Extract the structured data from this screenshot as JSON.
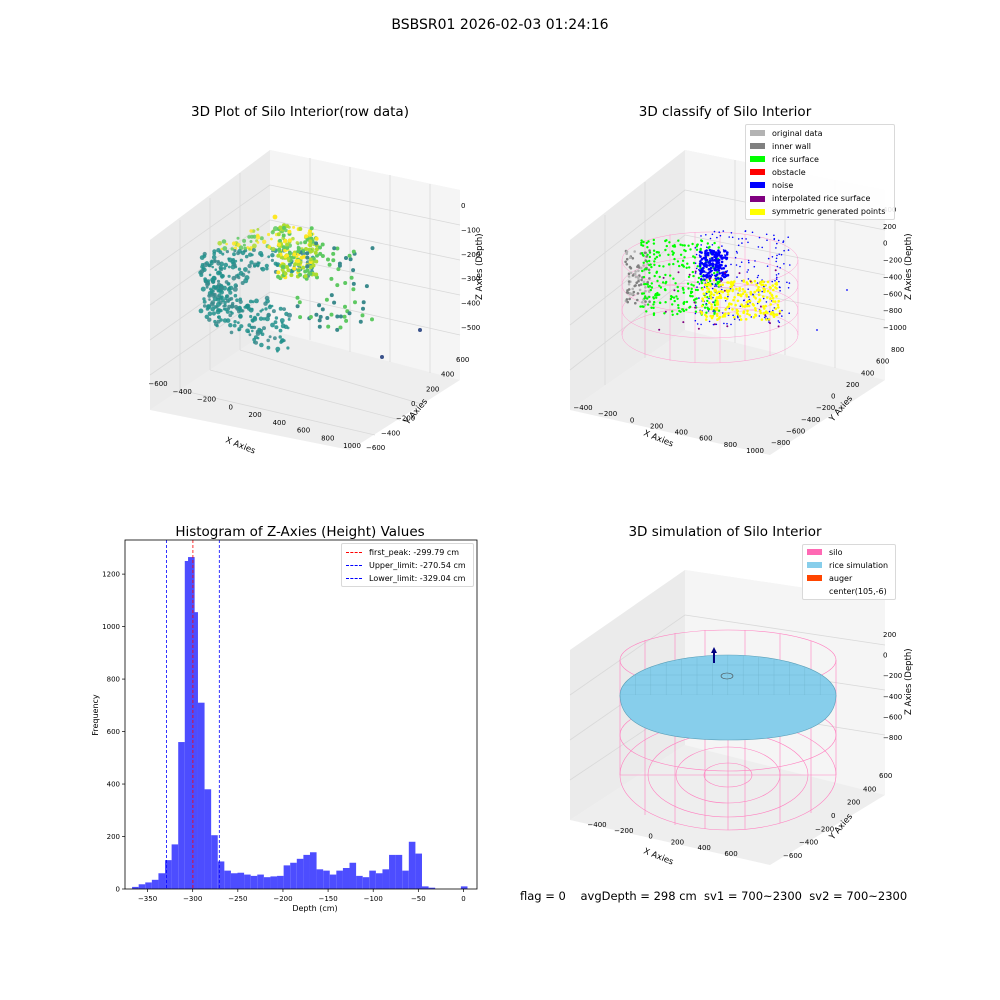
{
  "suptitle": "BSBSR01 2026-02-03 01:24:16",
  "panel1": {
    "title": "3D Plot of Silo Interior(row data)",
    "xlabel": "X Axies",
    "ylabel": "Y Axies",
    "zlabel": "Z Axies (Depth)",
    "xticks": [
      "−600",
      "−400",
      "−200",
      "0",
      "200",
      "400",
      "600",
      "800",
      "1000"
    ],
    "yticks": [
      "−600",
      "−400",
      "−200",
      "0",
      "200",
      "400",
      "600"
    ],
    "zticks": [
      "−500",
      "−400",
      "−300",
      "−200",
      "−100",
      "0"
    ]
  },
  "panel2": {
    "title": "3D classify of Silo Interior",
    "xlabel": "X Axies",
    "ylabel": "Y Axies",
    "zlabel": "Z Axies (Depth)",
    "xticks": [
      "−400",
      "−200",
      "0",
      "200",
      "400",
      "600",
      "800",
      "1000"
    ],
    "yticks": [
      "−800",
      "−600",
      "−400",
      "−200",
      "0",
      "200",
      "400",
      "600",
      "800"
    ],
    "zticks": [
      "−1000",
      "−800",
      "−600",
      "−400",
      "−200",
      "0",
      "200",
      "400"
    ],
    "legend": [
      {
        "label": "original data",
        "color": "#b3b3b3"
      },
      {
        "label": "inner wall",
        "color": "#808080"
      },
      {
        "label": "rice surface",
        "color": "#00ff00"
      },
      {
        "label": "obstacle",
        "color": "#ff0000"
      },
      {
        "label": "noise",
        "color": "#0000ff"
      },
      {
        "label": "interpolated rice surface",
        "color": "#800080"
      },
      {
        "label": "symmetric generated points",
        "color": "#ffff00"
      }
    ]
  },
  "panel4": {
    "title": "3D simulation of Silo Interior",
    "xlabel": "X Axies",
    "ylabel": "Y Axies",
    "zlabel": "Z Axies (Depth)",
    "xticks": [
      "−400",
      "−200",
      "0",
      "200",
      "400",
      "600"
    ],
    "yticks": [
      "−600",
      "−400",
      "−200",
      "0",
      "200",
      "400",
      "600"
    ],
    "zticks": [
      "−800",
      "−600",
      "−400",
      "−200",
      "0",
      "200"
    ],
    "legend": [
      {
        "label": "silo",
        "color": "#ff69b4"
      },
      {
        "label": "rice simulation",
        "color": "#87ceeb"
      },
      {
        "label": "auger",
        "color": "#ff4500"
      },
      {
        "label": "center(105,-6)",
        "color": ""
      }
    ]
  },
  "footer": "flag = 0    avgDepth = 298 cm  sv1 = 700~2300  sv2 = 700~2300",
  "chart_data": [
    {
      "type": "scatter",
      "title": "3D Plot of Silo Interior(row data)",
      "xlabel": "X Axies",
      "ylabel": "Y Axies",
      "zlabel": "Z Axies (Depth)",
      "xlim": [
        -600,
        1000
      ],
      "ylim": [
        -600,
        600
      ],
      "zlim": [
        -500,
        0
      ],
      "colormap": "viridis"
    },
    {
      "type": "scatter",
      "title": "3D classify of Silo Interior",
      "xlabel": "X Axies",
      "ylabel": "Y Axies",
      "zlabel": "Z Axies (Depth)",
      "xlim": [
        -400,
        1000
      ],
      "ylim": [
        -800,
        800
      ],
      "zlim": [
        -1000,
        400
      ],
      "legend_position": "top-right"
    },
    {
      "type": "bar",
      "title": "Histogram of Z-Axies (Height) Values",
      "xlabel": "Depth (cm)",
      "ylabel": "Frequency",
      "xlim": [
        -375,
        15
      ],
      "ylim": [
        0,
        1330
      ],
      "xticks": [
        -350,
        -300,
        -250,
        -200,
        -150,
        -100,
        -50,
        0
      ],
      "yticks": [
        0,
        200,
        400,
        600,
        800,
        1000,
        1200
      ],
      "bin_width": 7.3,
      "x": [
        -363.5,
        -356.2,
        -348.9,
        -341.6,
        -334.3,
        -327.0,
        -319.7,
        -312.4,
        -305.1,
        -301.5,
        -297.8,
        -290.5,
        -283.2,
        -275.9,
        -268.6,
        -261.3,
        -254.0,
        -246.7,
        -239.4,
        -232.1,
        -224.8,
        -217.5,
        -210.2,
        -202.9,
        -195.6,
        -188.3,
        -181.0,
        -173.7,
        -166.4,
        -159.1,
        -151.8,
        -144.5,
        -137.2,
        -129.9,
        -122.6,
        -115.3,
        -108.0,
        -100.7,
        -93.4,
        -86.1,
        -78.8,
        -71.5,
        -64.2,
        -56.9,
        -49.6,
        -42.3,
        -35.0,
        -27.7,
        -20.4,
        -13.1,
        -5.8,
        0.8
      ],
      "values": [
        8,
        18,
        25,
        35,
        60,
        110,
        170,
        560,
        1250,
        1265,
        1055,
        710,
        380,
        205,
        105,
        70,
        60,
        62,
        55,
        50,
        55,
        45,
        48,
        50,
        90,
        100,
        115,
        130,
        140,
        75,
        70,
        55,
        70,
        80,
        100,
        50,
        45,
        70,
        60,
        75,
        130,
        130,
        70,
        180,
        135,
        10,
        5,
        0,
        0,
        0,
        0,
        10
      ],
      "series": [
        {
          "name": "",
          "values": [
            8,
            18,
            25,
            35,
            60,
            110,
            170,
            560,
            1250,
            1265,
            1055,
            710,
            380,
            205,
            105,
            70,
            60,
            62,
            55,
            50,
            55,
            45,
            48,
            50,
            90,
            100,
            115,
            130,
            140,
            75,
            70,
            55,
            70,
            80,
            100,
            50,
            45,
            70,
            60,
            75,
            130,
            130,
            70,
            180,
            135,
            10,
            5,
            0,
            0,
            0,
            0,
            10
          ]
        }
      ],
      "bar_color": "#4d4dff",
      "vlines": [
        {
          "label": "first_peak: -299.79 cm",
          "x": -299.79,
          "color": "#ff0000"
        },
        {
          "label": "Upper_limit: -270.54 cm",
          "x": -270.54,
          "color": "#0000ff"
        },
        {
          "label": "Lower_limit: -329.04 cm",
          "x": -329.04,
          "color": "#0000ff"
        }
      ],
      "legend_position": "top-right"
    },
    {
      "type": "scatter",
      "title": "3D simulation of Silo Interior",
      "xlabel": "X Axies",
      "ylabel": "Y Axies",
      "zlabel": "Z Axies (Depth)",
      "xlim": [
        -400,
        600
      ],
      "ylim": [
        -600,
        600
      ],
      "zlim": [
        -800,
        200
      ],
      "legend_position": "top-right"
    }
  ]
}
